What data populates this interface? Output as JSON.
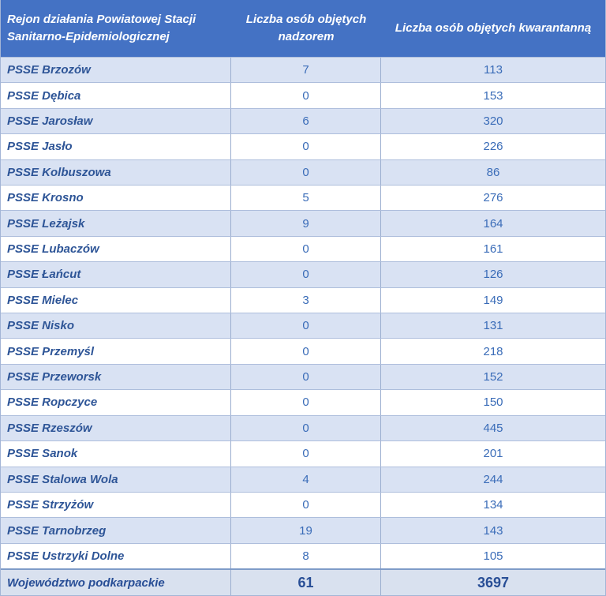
{
  "colors": {
    "header_bg": "#4472C4",
    "header_text": "#FFFFFF",
    "band_row_bg": "#D9E2F3",
    "white_row_bg": "#FFFFFF",
    "total_row_bg": "#D9E1EF",
    "label_text": "#2E5597",
    "number_text": "#3A6CB8",
    "grid_border": "#A3B5D6",
    "total_top_border": "#7E9BC8"
  },
  "chart_data": {
    "type": "table",
    "columns": [
      "Rejon działania Powiatowej Stacji Sanitarno-Epidemiologicznej",
      "Liczba osób objętych nadzorem",
      "Liczba osób objętych kwarantanną"
    ],
    "rows": [
      [
        "PSSE Brzozów",
        7,
        113
      ],
      [
        "PSSE Dębica",
        0,
        153
      ],
      [
        "PSSE Jarosław",
        6,
        320
      ],
      [
        "PSSE Jasło",
        0,
        226
      ],
      [
        "PSSE Kolbuszowa",
        0,
        86
      ],
      [
        "PSSE Krosno",
        5,
        276
      ],
      [
        "PSSE Leżajsk",
        9,
        164
      ],
      [
        "PSSE Lubaczów",
        0,
        161
      ],
      [
        "PSSE Łańcut",
        0,
        126
      ],
      [
        "PSSE Mielec",
        3,
        149
      ],
      [
        "PSSE Nisko",
        0,
        131
      ],
      [
        "PSSE Przemyśl",
        0,
        218
      ],
      [
        "PSSE Przeworsk",
        0,
        152
      ],
      [
        "PSSE Ropczyce",
        0,
        150
      ],
      [
        "PSSE Rzeszów",
        0,
        445
      ],
      [
        "PSSE Sanok",
        0,
        201
      ],
      [
        "PSSE Stalowa Wola",
        4,
        244
      ],
      [
        "PSSE Strzyżów",
        0,
        134
      ],
      [
        "PSSE Tarnobrzeg",
        19,
        143
      ],
      [
        "PSSE Ustrzyki Dolne",
        8,
        105
      ]
    ],
    "total": [
      "Województwo podkarpackie",
      61,
      3697
    ],
    "title": "",
    "legend": "none",
    "grid": "on"
  }
}
